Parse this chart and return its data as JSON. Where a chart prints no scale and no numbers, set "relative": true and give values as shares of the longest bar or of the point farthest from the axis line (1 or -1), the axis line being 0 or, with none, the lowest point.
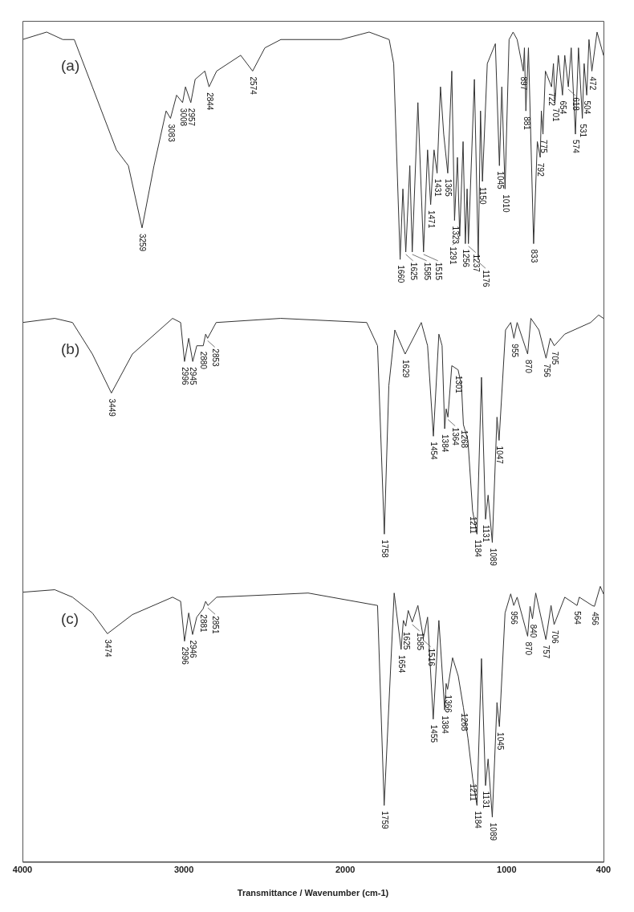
{
  "chart_data": {
    "type": "line",
    "relative": true,
    "xlabel": "Transmittance / Wavenumber (cm-1)",
    "xlim": [
      4000,
      400
    ],
    "xticks": [
      4000,
      3000,
      2000,
      1000,
      400
    ],
    "tick_labels": "x",
    "grid": false,
    "legend": false,
    "marker": "none",
    "line_style": "solid",
    "series": [
      {
        "name": "(a)",
        "color": "#333333",
        "x": [
          4000,
          3850,
          3750,
          3679,
          3567,
          3418,
          3344,
          3259,
          3185,
          3110,
          3083,
          3045,
          3008,
          2990,
          2957,
          2930,
          2870,
          2844,
          2797,
          2648,
          2574,
          2498,
          2399,
          2200,
          2027,
          1852,
          1728,
          1700,
          1660,
          1643,
          1625,
          1600,
          1585,
          1550,
          1515,
          1490,
          1471,
          1450,
          1431,
          1410,
          1390,
          1365,
          1340,
          1323,
          1305,
          1291,
          1270,
          1256,
          1245,
          1237,
          1200,
          1176,
          1162,
          1150,
          1120,
          1070,
          1045,
          1030,
          1010,
          985,
          960,
          935,
          897,
          890,
          881,
          865,
          833,
          810,
          792,
          785,
          775,
          760,
          722,
          710,
          701,
          680,
          654,
          640,
          618,
          600,
          574,
          555,
          531,
          520,
          504,
          490,
          472,
          440,
          400
        ],
        "values": [
          0.991,
          1.0,
          0.991,
          0.991,
          0.934,
          0.858,
          0.839,
          0.764,
          0.839,
          0.905,
          0.896,
          0.924,
          0.915,
          0.934,
          0.915,
          0.943,
          0.953,
          0.934,
          0.953,
          0.972,
          0.953,
          0.981,
          0.991,
          0.991,
          0.991,
          1.0,
          0.991,
          0.962,
          0.726,
          0.811,
          0.735,
          0.839,
          0.735,
          0.915,
          0.735,
          0.858,
          0.792,
          0.858,
          0.83,
          0.934,
          0.877,
          0.83,
          0.953,
          0.773,
          0.849,
          0.754,
          0.868,
          0.745,
          0.811,
          0.745,
          0.943,
          0.726,
          0.905,
          0.82,
          0.962,
          0.986,
          0.839,
          0.934,
          0.811,
          0.991,
          1.0,
          0.991,
          0.953,
          0.981,
          0.905,
          0.981,
          0.745,
          0.868,
          0.849,
          0.905,
          0.877,
          0.953,
          0.934,
          0.962,
          0.915,
          0.972,
          0.924,
          0.972,
          0.934,
          0.981,
          0.877,
          0.981,
          0.896,
          0.962,
          0.924,
          0.991,
          0.953,
          1.0,
          0.972
        ]
      },
      {
        "name": "(b)",
        "color": "#333333",
        "x": [
          4000,
          3800,
          3690,
          3567,
          3449,
          3319,
          3070,
          3020,
          2996,
          2970,
          2945,
          2920,
          2880,
          2865,
          2853,
          2800,
          2400,
          1867,
          1800,
          1758,
          1730,
          1693,
          1629,
          1529,
          1490,
          1454,
          1420,
          1400,
          1384,
          1375,
          1364,
          1340,
          1301,
          1280,
          1268,
          1240,
          1211,
          1184,
          1156,
          1131,
          1115,
          1089,
          1060,
          1047,
          1007,
          975,
          955,
          935,
          870,
          850,
          800,
          756,
          730,
          705,
          640,
          480,
          430,
          400
        ],
        "values": [
          0.65,
          0.655,
          0.65,
          0.612,
          0.565,
          0.612,
          0.655,
          0.65,
          0.603,
          0.631,
          0.603,
          0.622,
          0.622,
          0.636,
          0.631,
          0.65,
          0.655,
          0.65,
          0.622,
          0.395,
          0.574,
          0.641,
          0.612,
          0.65,
          0.622,
          0.513,
          0.636,
          0.622,
          0.522,
          0.546,
          0.536,
          0.598,
          0.593,
          0.574,
          0.527,
          0.508,
          0.423,
          0.395,
          0.584,
          0.413,
          0.442,
          0.385,
          0.536,
          0.508,
          0.641,
          0.65,
          0.631,
          0.65,
          0.612,
          0.655,
          0.641,
          0.607,
          0.631,
          0.622,
          0.636,
          0.65,
          0.659,
          0.655
        ]
      },
      {
        "name": "(c)",
        "color": "#333333",
        "x": [
          4000,
          3800,
          3690,
          3567,
          3474,
          3319,
          3070,
          3020,
          2996,
          2970,
          2946,
          2920,
          2881,
          2865,
          2851,
          2797,
          2230,
          1800,
          1759,
          1697,
          1654,
          1640,
          1625,
          1610,
          1585,
          1550,
          1516,
          1490,
          1455,
          1420,
          1384,
          1375,
          1366,
          1335,
          1300,
          1268,
          1240,
          1211,
          1184,
          1156,
          1131,
          1115,
          1089,
          1060,
          1045,
          1010,
          975,
          956,
          935,
          870,
          855,
          840,
          820,
          757,
          725,
          706,
          640,
          564,
          550,
          470,
          456,
          420,
          400
        ],
        "values": [
          0.325,
          0.328,
          0.319,
          0.3,
          0.275,
          0.298,
          0.319,
          0.314,
          0.266,
          0.3,
          0.274,
          0.295,
          0.305,
          0.314,
          0.309,
          0.319,
          0.324,
          0.309,
          0.068,
          0.324,
          0.256,
          0.291,
          0.284,
          0.303,
          0.289,
          0.309,
          0.27,
          0.295,
          0.172,
          0.291,
          0.183,
          0.215,
          0.208,
          0.246,
          0.224,
          0.186,
          0.149,
          0.101,
          0.068,
          0.245,
          0.092,
          0.124,
          0.054,
          0.192,
          0.163,
          0.3,
          0.323,
          0.309,
          0.319,
          0.272,
          0.308,
          0.293,
          0.324,
          0.268,
          0.309,
          0.286,
          0.319,
          0.309,
          0.319,
          0.309,
          0.308,
          0.332,
          0.323
        ]
      }
    ],
    "annotations": [
      {
        "text": "3259",
        "x": 3259,
        "y": 0.764
      },
      {
        "text": "3083",
        "x": 3083,
        "y": 0.896
      },
      {
        "text": "3008",
        "x": 3008,
        "y": 0.915
      },
      {
        "text": "2957",
        "x": 2957,
        "y": 0.915
      },
      {
        "text": "2844",
        "x": 2844,
        "y": 0.934
      },
      {
        "text": "2574",
        "x": 2574,
        "y": 0.953
      },
      {
        "text": "1660",
        "x": 1660,
        "y": 0.726
      },
      {
        "text": "1625",
        "x": 1625,
        "y": 0.735
      },
      {
        "text": "1585",
        "x": 1585,
        "y": 0.735
      },
      {
        "text": "1515",
        "x": 1515,
        "y": 0.735
      },
      {
        "text": "1471",
        "x": 1471,
        "y": 0.792
      },
      {
        "text": "1431",
        "x": 1431,
        "y": 0.83
      },
      {
        "text": "1365",
        "x": 1365,
        "y": 0.83
      },
      {
        "text": "1323",
        "x": 1323,
        "y": 0.773
      },
      {
        "text": "1291",
        "x": 1291,
        "y": 0.754
      },
      {
        "text": "1256",
        "x": 1256,
        "y": 0.745
      },
      {
        "text": "1237",
        "x": 1237,
        "y": 0.745
      },
      {
        "text": "1176",
        "x": 1176,
        "y": 0.726
      },
      {
        "text": "1150",
        "x": 1150,
        "y": 0.82
      },
      {
        "text": "1045",
        "x": 1045,
        "y": 0.839
      },
      {
        "text": "1010",
        "x": 1010,
        "y": 0.811
      },
      {
        "text": "897",
        "x": 897,
        "y": 0.953
      },
      {
        "text": "881",
        "x": 881,
        "y": 0.905
      },
      {
        "text": "833",
        "x": 833,
        "y": 0.745
      },
      {
        "text": "792",
        "x": 792,
        "y": 0.849
      },
      {
        "text": "775",
        "x": 775,
        "y": 0.877
      },
      {
        "text": "722",
        "x": 722,
        "y": 0.934
      },
      {
        "text": "701",
        "x": 701,
        "y": 0.915
      },
      {
        "text": "654",
        "x": 654,
        "y": 0.924
      },
      {
        "text": "618",
        "x": 618,
        "y": 0.934
      },
      {
        "text": "574",
        "x": 574,
        "y": 0.877
      },
      {
        "text": "531",
        "x": 531,
        "y": 0.896
      },
      {
        "text": "504",
        "x": 504,
        "y": 0.924
      },
      {
        "text": "472",
        "x": 472,
        "y": 0.953
      },
      {
        "text": "3449",
        "x": 3449,
        "y": 0.565
      },
      {
        "text": "2996",
        "x": 2996,
        "y": 0.603
      },
      {
        "text": "2945",
        "x": 2945,
        "y": 0.603
      },
      {
        "text": "2880",
        "x": 2880,
        "y": 0.622
      },
      {
        "text": "2853",
        "x": 2853,
        "y": 0.631
      },
      {
        "text": "1758",
        "x": 1758,
        "y": 0.395
      },
      {
        "text": "1629",
        "x": 1629,
        "y": 0.612
      },
      {
        "text": "1454",
        "x": 1454,
        "y": 0.513
      },
      {
        "text": "1384",
        "x": 1384,
        "y": 0.522
      },
      {
        "text": "1364",
        "x": 1364,
        "y": 0.536
      },
      {
        "text": "1301",
        "x": 1301,
        "y": 0.593
      },
      {
        "text": "1268",
        "x": 1268,
        "y": 0.527
      },
      {
        "text": "1211",
        "x": 1211,
        "y": 0.423
      },
      {
        "text": "1184",
        "x": 1184,
        "y": 0.395
      },
      {
        "text": "1131",
        "x": 1131,
        "y": 0.413
      },
      {
        "text": "1089",
        "x": 1089,
        "y": 0.385
      },
      {
        "text": "1047",
        "x": 1047,
        "y": 0.508
      },
      {
        "text": "955",
        "x": 955,
        "y": 0.631
      },
      {
        "text": "870",
        "x": 870,
        "y": 0.612
      },
      {
        "text": "756",
        "x": 756,
        "y": 0.607
      },
      {
        "text": "705",
        "x": 705,
        "y": 0.622
      },
      {
        "text": "3474",
        "x": 3474,
        "y": 0.275
      },
      {
        "text": "2996",
        "x": 2996,
        "y": 0.266
      },
      {
        "text": "2946",
        "x": 2946,
        "y": 0.274
      },
      {
        "text": "2881",
        "x": 2881,
        "y": 0.305
      },
      {
        "text": "2851",
        "x": 2851,
        "y": 0.309
      },
      {
        "text": "1759",
        "x": 1759,
        "y": 0.068
      },
      {
        "text": "1654",
        "x": 1654,
        "y": 0.256
      },
      {
        "text": "1625",
        "x": 1625,
        "y": 0.284
      },
      {
        "text": "1585",
        "x": 1585,
        "y": 0.289
      },
      {
        "text": "1516",
        "x": 1516,
        "y": 0.27
      },
      {
        "text": "1455",
        "x": 1455,
        "y": 0.172
      },
      {
        "text": "1384",
        "x": 1384,
        "y": 0.183
      },
      {
        "text": "1366",
        "x": 1366,
        "y": 0.208
      },
      {
        "text": "1268",
        "x": 1268,
        "y": 0.186
      },
      {
        "text": "1211",
        "x": 1211,
        "y": 0.101
      },
      {
        "text": "1184",
        "x": 1184,
        "y": 0.068
      },
      {
        "text": "1131",
        "x": 1131,
        "y": 0.092
      },
      {
        "text": "1089",
        "x": 1089,
        "y": 0.054
      },
      {
        "text": "1045",
        "x": 1045,
        "y": 0.163
      },
      {
        "text": "956",
        "x": 956,
        "y": 0.309
      },
      {
        "text": "870",
        "x": 870,
        "y": 0.272
      },
      {
        "text": "840",
        "x": 840,
        "y": 0.293
      },
      {
        "text": "757",
        "x": 757,
        "y": 0.268
      },
      {
        "text": "706",
        "x": 706,
        "y": 0.286
      },
      {
        "text": "564",
        "x": 564,
        "y": 0.309
      },
      {
        "text": "456",
        "x": 456,
        "y": 0.308
      }
    ]
  }
}
